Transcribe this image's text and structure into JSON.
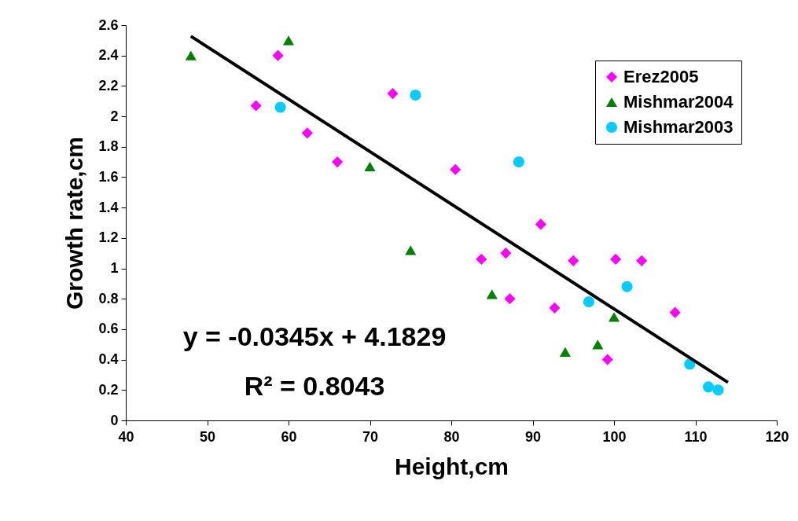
{
  "chart_data": {
    "type": "scatter",
    "xlabel": "Height,cm",
    "ylabel": "Growth rate,cm",
    "xlim": [
      40,
      120
    ],
    "xticks": [
      40,
      50,
      60,
      70,
      80,
      90,
      100,
      110,
      120
    ],
    "ylim": [
      0,
      2.6
    ],
    "yticks": [
      0,
      0.2,
      0.4,
      0.6,
      0.8,
      1,
      1.2,
      1.4,
      1.6,
      1.8,
      2,
      2.2,
      2.4,
      2.6
    ],
    "grid": false,
    "legend": "top right",
    "series": [
      {
        "name": "Erez2005",
        "color": "#ff00ff",
        "marker": "diamond",
        "x": [
          56,
          58.7,
          62.3,
          66,
          72.8,
          80.5,
          83.7,
          86.7,
          87.2,
          91,
          92.7,
          95,
          99.2,
          100.2,
          103.4,
          107.5
        ],
        "values": [
          2.07,
          2.4,
          1.89,
          1.7,
          2.15,
          1.65,
          1.06,
          1.1,
          0.8,
          1.29,
          0.74,
          1.05,
          0.4,
          1.06,
          1.05,
          0.71
        ]
      },
      {
        "name": "Mishmar2004",
        "color": "#008000",
        "marker": "triangle",
        "x": [
          48,
          60,
          70,
          75,
          85,
          94,
          98,
          100
        ],
        "values": [
          2.4,
          2.5,
          1.67,
          1.12,
          0.83,
          0.45,
          0.5,
          0.68
        ]
      },
      {
        "name": "Mishmar2003",
        "color": "#00ccff",
        "marker": "circle",
        "x": [
          59,
          75.6,
          88.3,
          96.9,
          101.6,
          109.3,
          111.6,
          112.8
        ],
        "values": [
          2.06,
          2.14,
          1.7,
          0.78,
          0.88,
          0.37,
          0.22,
          0.2
        ]
      },
      {
        "type": "line",
        "color": "#000000",
        "x": [
          48,
          114
        ],
        "values": [
          2.527,
          0.25
        ]
      }
    ],
    "annotations": [
      "y = -0.0345x + 4.1829",
      "R² = 0.8043"
    ]
  }
}
